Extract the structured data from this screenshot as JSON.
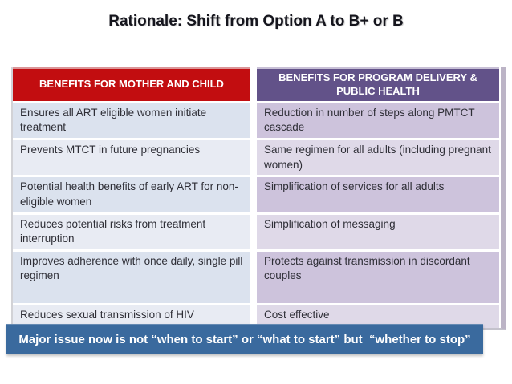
{
  "slide": {
    "title": "Rationale: Shift from Option A to B+ or B"
  },
  "table": {
    "headers": [
      "BENEFITS FOR MOTHER AND CHILD",
      "BENEFITS FOR PROGRAM DELIVERY & PUBLIC HEALTH"
    ],
    "rows": [
      {
        "left": "Ensures all ART eligible women initiate treatment",
        "right": "Reduction in number of steps along PMTCT cascade"
      },
      {
        "left": "Prevents MTCT in future pregnancies",
        "right": "Same regimen for all adults (including pregnant women)"
      },
      {
        "left": "Potential health benefits of early ART for non-eligible women",
        "right": "Simplification of services for all adults"
      },
      {
        "left": "Reduces potential risks from treatment interruption",
        "right": "Simplification of messaging"
      },
      {
        "left": "Improves adherence with once daily, single pill regimen",
        "right": "Protects against transmission in discordant couples"
      },
      {
        "left": "Reduces sexual transmission of HIV",
        "right": "Cost effective"
      }
    ]
  },
  "banner": {
    "text": "Major issue now is not “when to start” or “what to start” but  “whether to stop”"
  },
  "colors": {
    "header_left_bg": "#c20d10",
    "header_right_bg": "#625289",
    "row_left_odd": "#dbe2ee",
    "row_left_even": "#e8ebf3",
    "row_right_odd": "#cdc3dc",
    "row_right_even": "#dfd9e8",
    "banner_bg": "#3a6a9e",
    "title_text": "#15151d",
    "cell_text": "#2e2e36"
  }
}
